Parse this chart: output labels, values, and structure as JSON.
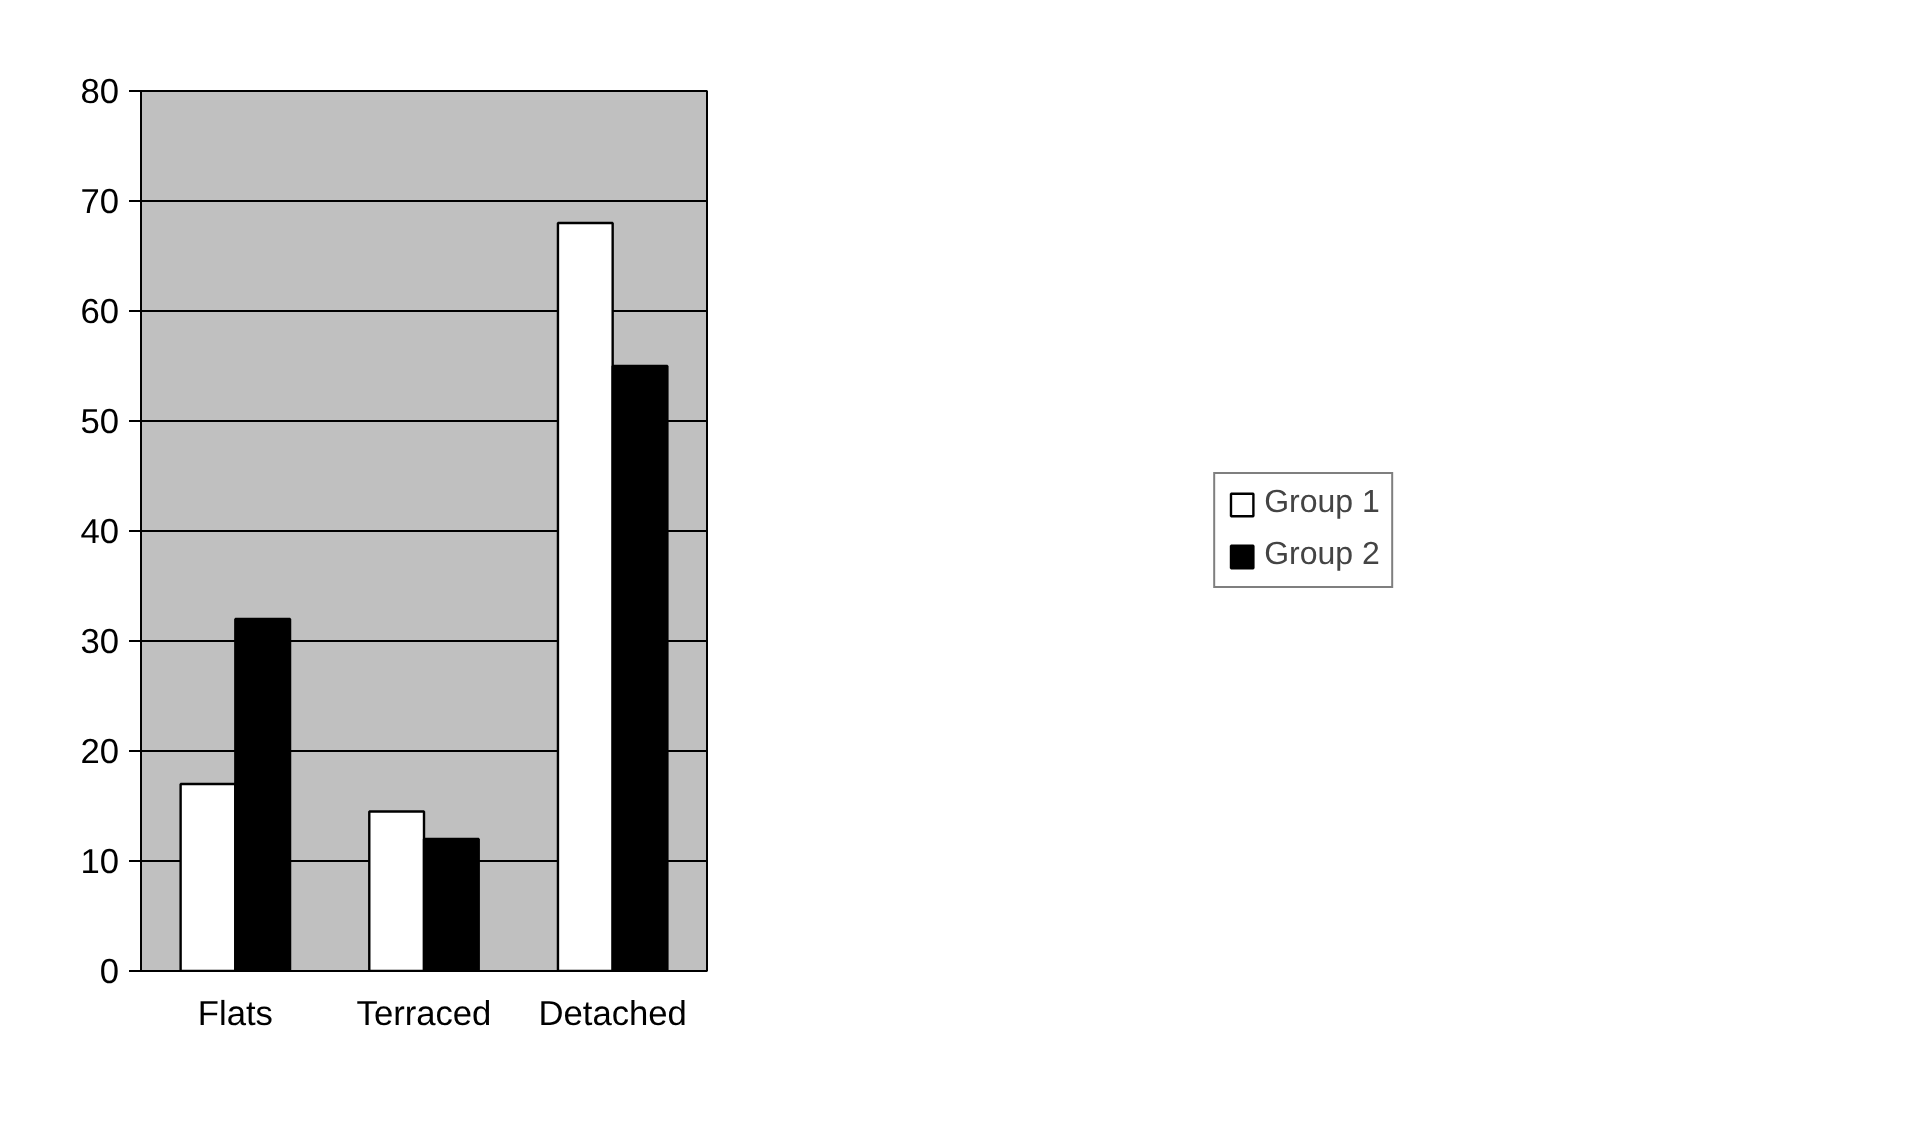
{
  "chart_data": {
    "type": "bar",
    "categories": [
      "Flats",
      "Terraced",
      "Detached"
    ],
    "series": [
      {
        "name": "Group 1",
        "color": "#ffffff",
        "values": [
          17,
          14.5,
          68
        ]
      },
      {
        "name": "Group 2",
        "color": "#000000",
        "values": [
          32,
          12,
          55
        ]
      }
    ],
    "ylim": [
      0,
      80
    ],
    "yticks": [
      0,
      10,
      20,
      30,
      40,
      50,
      60,
      70,
      80
    ],
    "grid": "y",
    "legend": "right"
  }
}
